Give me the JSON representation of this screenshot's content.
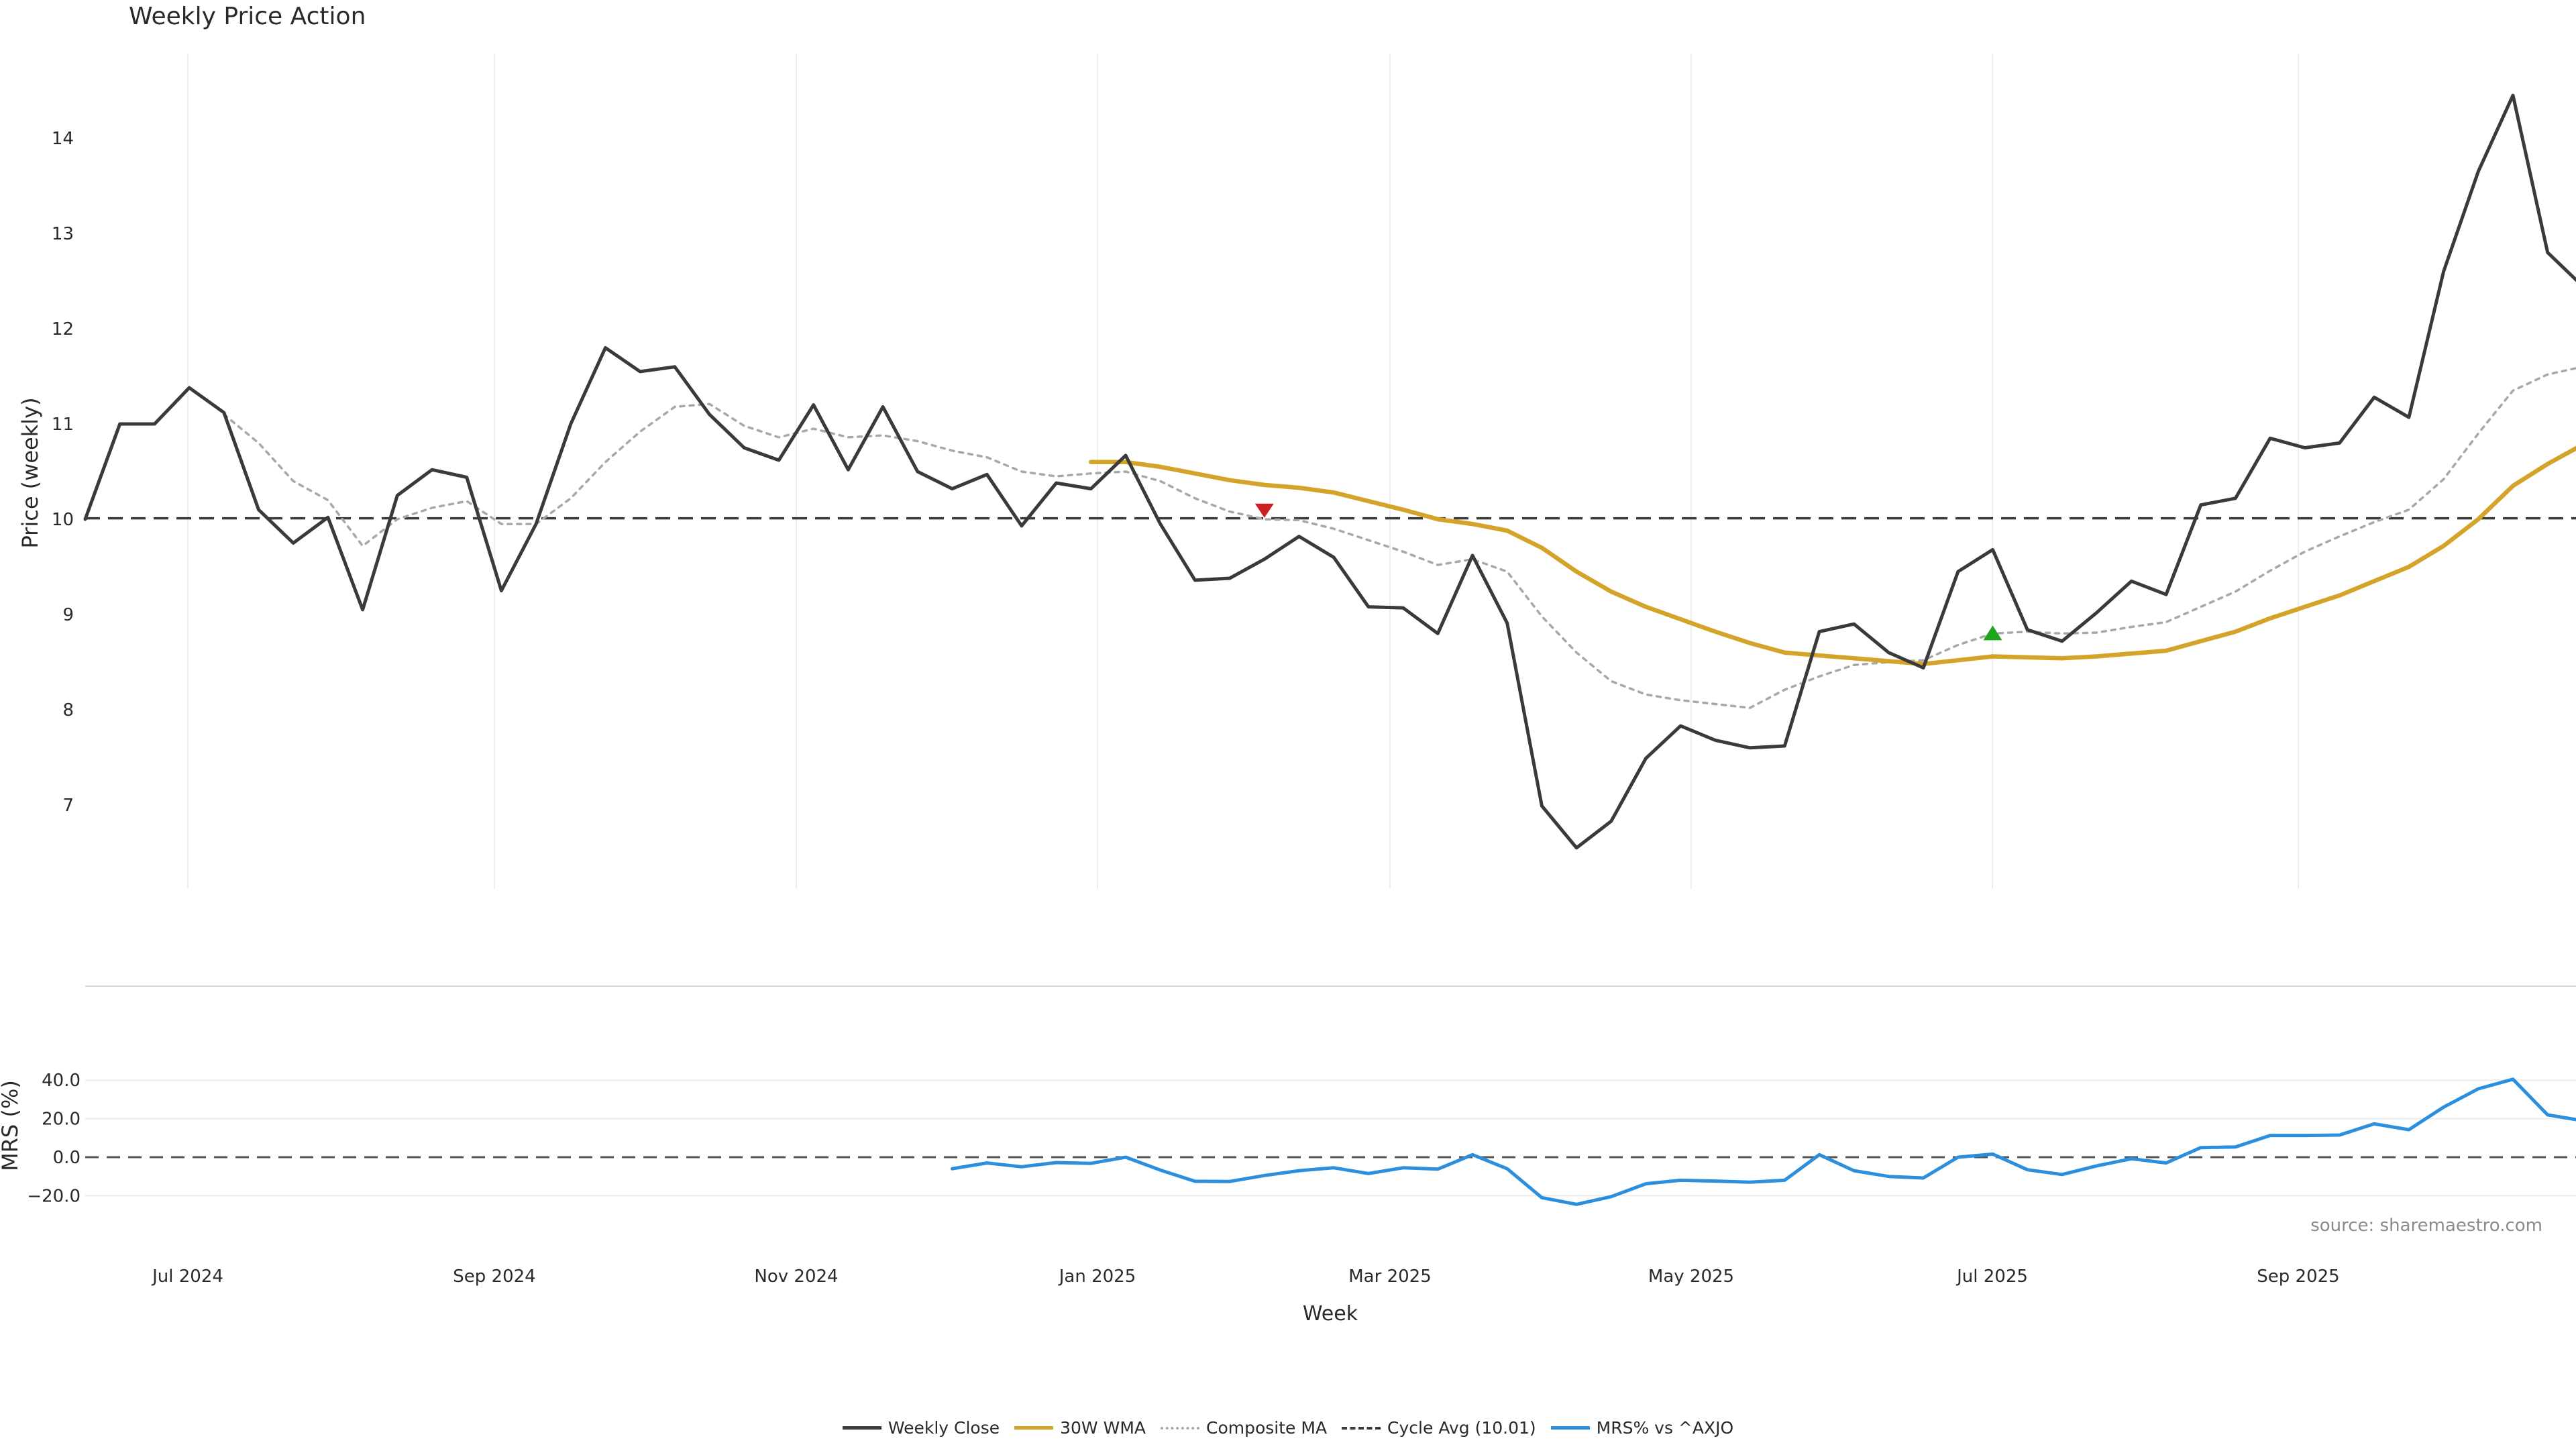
{
  "title": "Weekly Price Action",
  "source_note": "source: sharemaestro.com",
  "legend": [
    {
      "label": "Weekly Close",
      "color": "#3a3a3a",
      "style": "solid"
    },
    {
      "label": "30W WMA",
      "color": "#d4a42a",
      "style": "solid"
    },
    {
      "label": "Composite MA",
      "color": "#a8a8a8",
      "style": "dotted"
    },
    {
      "label": "Cycle Avg (10.01)",
      "color": "#3a3a3a",
      "style": "dashed"
    },
    {
      "label": "MRS% vs ^AXJO",
      "color": "#2b8fdd",
      "style": "solid"
    }
  ],
  "chart_data": [
    {
      "type": "line",
      "title": "Weekly Price Action",
      "xlabel": "",
      "ylabel": "Price (weekly)",
      "ylim": [
        6,
        15
      ],
      "yticks": [
        7,
        8,
        9,
        10,
        11,
        12,
        13,
        14
      ],
      "xticks": [
        "Jul 2024",
        "Sep 2024",
        "Nov 2024",
        "Jan 2025",
        "Mar 2025",
        "May 2025",
        "Jul 2025",
        "Sep 2025"
      ],
      "grid": "vertical",
      "reference_line": {
        "name": "Cycle Avg (10.01)",
        "value": 10.01
      },
      "markers": [
        {
          "type": "sell",
          "symbol": "triangle-down",
          "color": "#cc1f1f",
          "x": 34,
          "y": 10.1
        },
        {
          "type": "buy",
          "symbol": "triangle-up",
          "color": "#1ea51e",
          "x": 55,
          "y": 8.8
        }
      ],
      "series": [
        {
          "name": "Weekly Close",
          "color": "#3a3a3a",
          "values": [
            10.0,
            11.0,
            11.0,
            11.38,
            11.12,
            10.1,
            9.75,
            10.02,
            9.05,
            10.25,
            10.52,
            10.44,
            9.25,
            9.95,
            11.0,
            11.8,
            11.55,
            11.6,
            11.1,
            10.75,
            10.62,
            11.2,
            10.52,
            11.18,
            10.5,
            10.32,
            10.47,
            9.93,
            10.38,
            10.32,
            10.67,
            9.95,
            9.36,
            9.38,
            9.58,
            9.82,
            9.6,
            9.08,
            9.07,
            8.8,
            9.62,
            8.91,
            6.99,
            6.55,
            6.83,
            7.49,
            7.83,
            7.68,
            7.6,
            7.62,
            8.82,
            8.9,
            8.6,
            8.44,
            9.45,
            9.68,
            8.84,
            8.72,
            9.02,
            9.35,
            9.21,
            10.15,
            10.22,
            10.85,
            10.75,
            10.8,
            11.28,
            11.07,
            12.6,
            13.65,
            14.45,
            12.8,
            12.45
          ]
        },
        {
          "name": "30W WMA",
          "color": "#d4a42a",
          "values": [
            null,
            null,
            null,
            null,
            null,
            null,
            null,
            null,
            null,
            null,
            null,
            null,
            null,
            null,
            null,
            null,
            null,
            null,
            null,
            null,
            null,
            null,
            null,
            null,
            null,
            null,
            null,
            null,
            null,
            10.6,
            10.6,
            10.55,
            10.48,
            10.41,
            10.36,
            10.33,
            10.28,
            10.19,
            10.1,
            10.0,
            9.95,
            9.88,
            9.7,
            9.45,
            9.24,
            9.08,
            8.95,
            8.82,
            8.7,
            8.6,
            8.57,
            8.54,
            8.51,
            8.48,
            8.52,
            8.56,
            8.55,
            8.54,
            8.56,
            8.59,
            8.62,
            8.72,
            8.82,
            8.96,
            9.08,
            9.2,
            9.35,
            9.5,
            9.72,
            10.0,
            10.35,
            10.58,
            10.78
          ]
        },
        {
          "name": "Composite MA",
          "color": "#a8a8a8",
          "values": [
            null,
            null,
            null,
            null,
            11.1,
            10.8,
            10.4,
            10.2,
            9.72,
            10.0,
            10.12,
            10.19,
            9.95,
            9.95,
            10.22,
            10.6,
            10.92,
            11.18,
            11.21,
            10.98,
            10.86,
            10.95,
            10.86,
            10.88,
            10.82,
            10.72,
            10.65,
            10.5,
            10.45,
            10.48,
            10.5,
            10.4,
            10.22,
            10.08,
            10.0,
            9.99,
            9.9,
            9.78,
            9.66,
            9.52,
            9.58,
            9.45,
            8.98,
            8.6,
            8.3,
            8.16,
            8.1,
            8.06,
            8.02,
            8.21,
            8.35,
            8.47,
            8.5,
            8.52,
            8.68,
            8.8,
            8.82,
            8.8,
            8.81,
            8.87,
            8.92,
            9.08,
            9.24,
            9.46,
            9.66,
            9.82,
            9.97,
            10.1,
            10.42,
            10.9,
            11.35,
            11.52,
            11.6
          ]
        }
      ]
    },
    {
      "type": "line",
      "xlabel": "Week",
      "ylabel": "MRS (%)",
      "ylim": [
        -22,
        44
      ],
      "yticks": [
        -20.0,
        0.0,
        20.0,
        40.0
      ],
      "ytick_labels": [
        "−20.0",
        "0.0",
        "20.0",
        "40.0"
      ],
      "xticks": [
        "Jul 2024",
        "Sep 2024",
        "Nov 2024",
        "Jan 2025",
        "Mar 2025",
        "May 2025",
        "Jul 2025",
        "Sep 2025"
      ],
      "reference_line": {
        "value": 0
      },
      "series": [
        {
          "name": "MRS% vs ^AXJO",
          "color": "#2b8fdd",
          "values": [
            null,
            null,
            null,
            null,
            null,
            null,
            null,
            null,
            null,
            null,
            null,
            null,
            null,
            null,
            null,
            null,
            null,
            null,
            null,
            null,
            null,
            null,
            null,
            null,
            null,
            -6.0,
            -3.0,
            -5.0,
            -2.8,
            -3.2,
            0.0,
            -6.7,
            -12.5,
            -12.6,
            -9.5,
            -7.0,
            -5.5,
            -8.5,
            -5.5,
            -6.2,
            1.3,
            -6.0,
            -21.0,
            -24.5,
            -20.5,
            -13.8,
            -12.0,
            -12.4,
            -13.0,
            -12.0,
            1.3,
            -7.0,
            -10.0,
            -10.8,
            0.0,
            1.6,
            -6.5,
            -9.0,
            -4.5,
            -0.8,
            -3.0,
            5.0,
            5.3,
            11.3,
            11.3,
            11.5,
            17.3,
            14.3,
            26.0,
            35.5,
            40.5,
            22.0,
            19.0
          ]
        }
      ]
    }
  ]
}
